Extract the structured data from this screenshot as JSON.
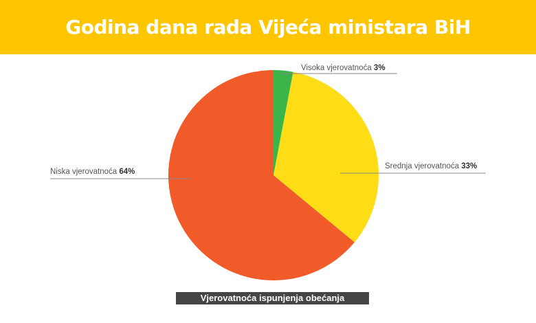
{
  "header": {
    "title": "Godina dana rada Vijeća ministara BiH"
  },
  "chart_data": {
    "type": "pie",
    "title": "Godina dana rada Vijeća ministara BiH",
    "caption": "Vjerovatnoća ispunjenja obećanja",
    "start": "top",
    "direction": "clockwise",
    "slices": [
      {
        "label": "Visoka vjerovatnoća",
        "value": 3,
        "value_label": "3%",
        "color": "#3bb54a"
      },
      {
        "label": "Srednja vjerovatnoća",
        "value": 33,
        "value_label": "33%",
        "color": "#fedd17"
      },
      {
        "label": "Niska vjerovatnoća",
        "value": 64,
        "value_label": "64%",
        "color": "#f15a29"
      }
    ]
  }
}
